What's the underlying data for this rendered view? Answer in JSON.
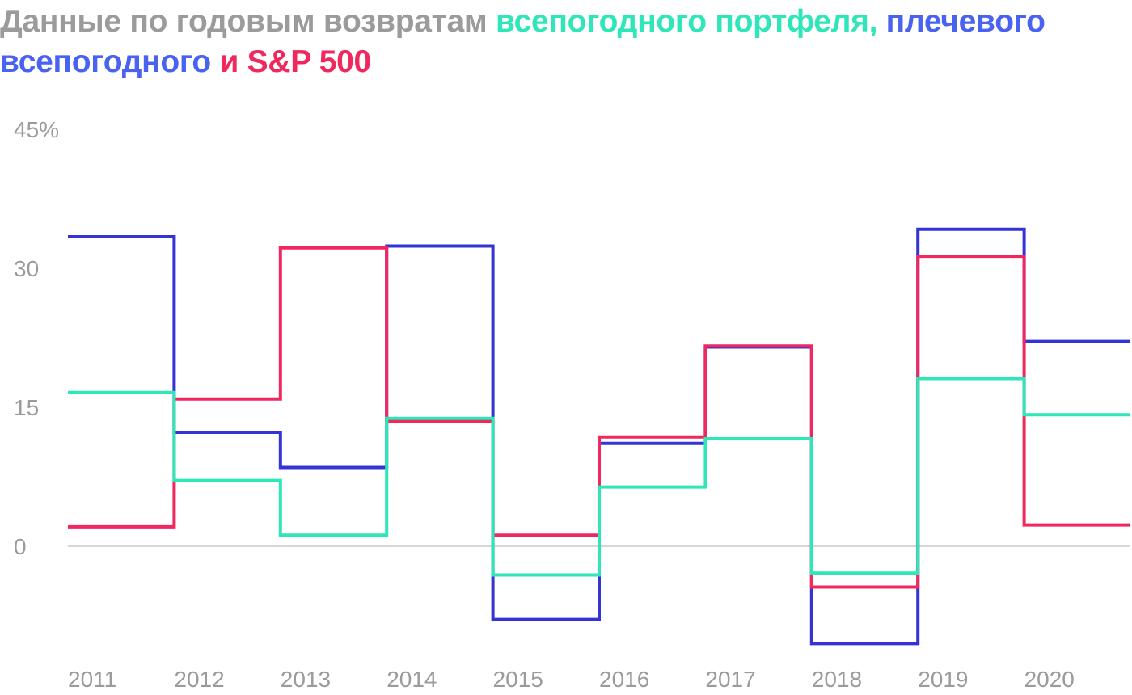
{
  "title": {
    "part1": "Данные по годовым возвратам ",
    "part2": "всепогодного портфеля,",
    "part3": " плечевого всепогодного",
    "part4": " и ",
    "part5": "S&P 500"
  },
  "colors": {
    "gray": "#9b9b9b",
    "all_weather": "#2ee6b8",
    "leveraged": "#3434d6",
    "leveraged_title": "#4a62f0",
    "sp500": "#f0285e",
    "baseline": "#c8c8c8"
  },
  "chart_data": {
    "type": "line",
    "step": true,
    "title": "Данные по годовым возвратам всепогодного портфеля, плечевого всепогодного и S&P 500",
    "xlabel": "",
    "ylabel": "",
    "categories": [
      "2011",
      "2012",
      "2013",
      "2014",
      "2015",
      "2016",
      "2017",
      "2018",
      "2019",
      "2020"
    ],
    "y_ticks": [
      0,
      15,
      30,
      45
    ],
    "y_tick_labels": [
      "0",
      "15",
      "30",
      "45%"
    ],
    "ylim": [
      -11,
      45
    ],
    "grid": false,
    "series": [
      {
        "name": "плечевое всепогодное",
        "color_key": "leveraged",
        "values": [
          33.4,
          12.3,
          8.5,
          32.4,
          -7.9,
          11.1,
          21.5,
          -10.5,
          34.2,
          22.1
        ]
      },
      {
        "name": "S&P 500",
        "color_key": "sp500",
        "values": [
          2.1,
          15.9,
          32.2,
          13.5,
          1.2,
          11.8,
          21.6,
          -4.4,
          31.3,
          2.3
        ]
      },
      {
        "name": "всепогодный портфель",
        "color_key": "all_weather",
        "values": [
          16.6,
          7.1,
          1.2,
          13.8,
          -3.1,
          6.4,
          11.6,
          -2.9,
          18.1,
          14.2
        ]
      }
    ]
  }
}
